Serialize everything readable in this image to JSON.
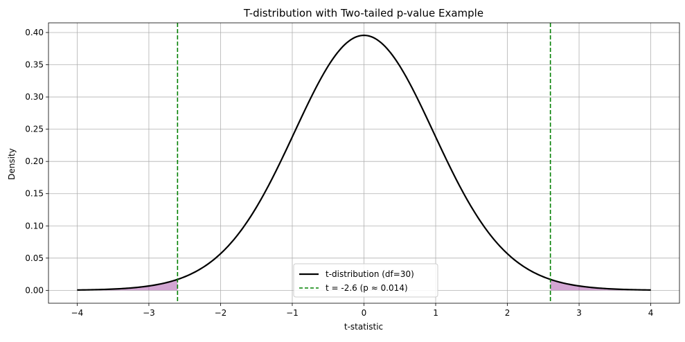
{
  "chart_data": {
    "type": "line",
    "title": "T-distribution with Two-tailed p-value Example",
    "xlabel": "t-statistic",
    "ylabel": "Density",
    "xlim": [
      -4.4,
      4.4
    ],
    "ylim": [
      -0.02,
      0.415
    ],
    "x_ticks": [
      -4,
      -3,
      -2,
      -1,
      0,
      1,
      2,
      3,
      4
    ],
    "x_tick_labels": [
      "−4",
      "−3",
      "−2",
      "−1",
      "0",
      "1",
      "2",
      "3",
      "4"
    ],
    "y_ticks": [
      0.0,
      0.05,
      0.1,
      0.15,
      0.2,
      0.25,
      0.3,
      0.35,
      0.4
    ],
    "y_tick_labels": [
      "0.00",
      "0.05",
      "0.10",
      "0.15",
      "0.20",
      "0.25",
      "0.30",
      "0.35",
      "0.40"
    ],
    "grid": true,
    "legend_position": "bottom-center",
    "series": [
      {
        "name": "t-distribution (df=30)",
        "color": "#000000",
        "style": "solid",
        "x": [
          -4.0,
          -3.5,
          -3.0,
          -2.6,
          -2.5,
          -2.0,
          -1.5,
          -1.0,
          -0.5,
          0.0,
          0.5,
          1.0,
          1.5,
          2.0,
          2.5,
          2.6,
          3.0,
          3.5,
          4.0
        ],
        "y": [
          0.0005,
          0.0015,
          0.0051,
          0.0146,
          0.0173,
          0.0554,
          0.1283,
          0.2422,
          0.3494,
          0.3956,
          0.3494,
          0.2422,
          0.1283,
          0.0554,
          0.0173,
          0.0146,
          0.0051,
          0.0015,
          0.0005
        ]
      }
    ],
    "t_statistic": {
      "label": "t = -2.6 (p ≈ 0.014)",
      "value": -2.6,
      "lines_at": [
        -2.6,
        2.6
      ],
      "color": "#008000",
      "style": "dashed"
    },
    "shaded_tails": {
      "color": "#800080",
      "opacity": 0.35,
      "ranges": [
        [
          -4.0,
          -2.6
        ],
        [
          2.6,
          4.0
        ]
      ]
    }
  }
}
